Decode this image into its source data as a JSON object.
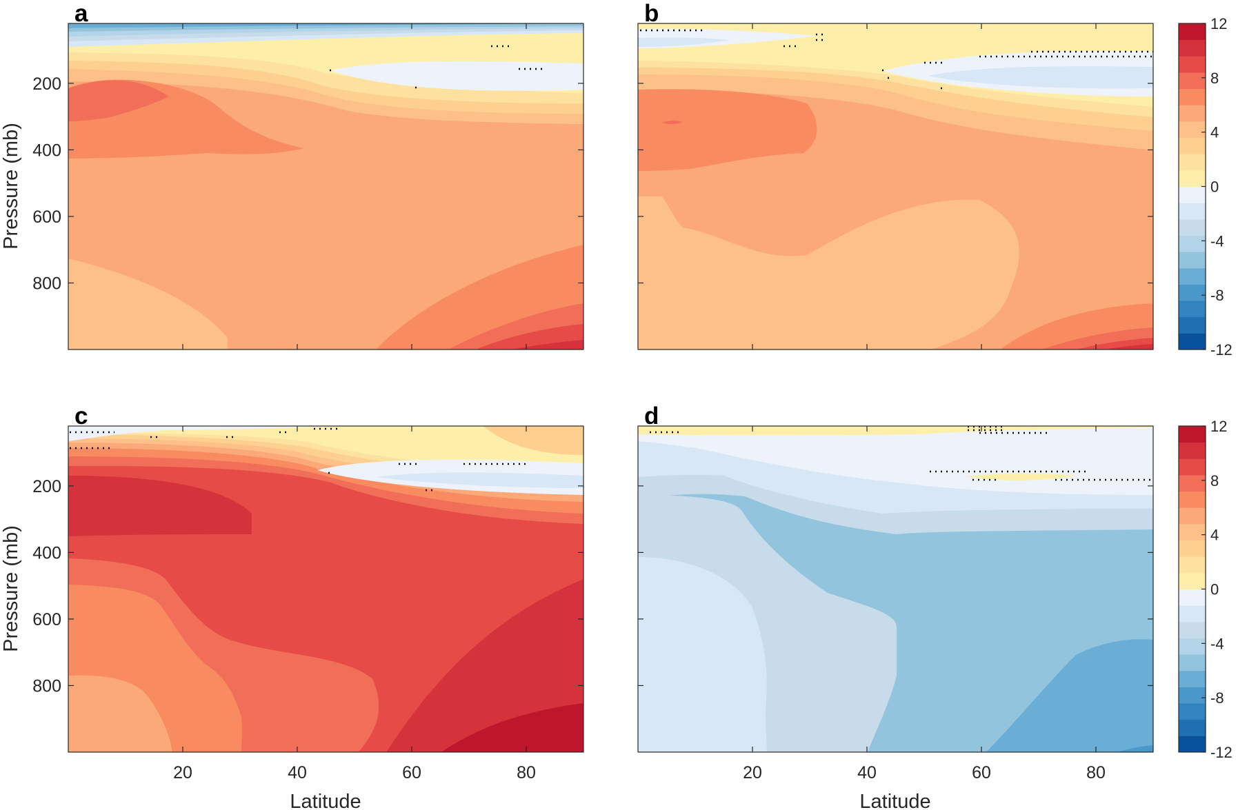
{
  "chart_data": {
    "type": "contour",
    "shared": {
      "xlabel": "Latitude",
      "ylabel": "Pressure (mb)",
      "xlim": [
        0,
        90
      ],
      "ylim": [
        1000,
        20
      ],
      "xticks": [
        20,
        40,
        60,
        80
      ],
      "yticks": [
        200,
        400,
        600,
        800
      ],
      "colorbar_ticks": [
        12,
        8,
        4,
        0,
        -4,
        -8,
        -12
      ],
      "colorbar_range": [
        -12,
        12
      ],
      "colorbar_levels": [
        {
          "from": -12,
          "to": -10.8,
          "color": "#08519c"
        },
        {
          "from": -10.8,
          "to": -9.6,
          "color": "#1f6fb2"
        },
        {
          "from": -9.6,
          "to": -8.4,
          "color": "#3383be"
        },
        {
          "from": -8.4,
          "to": -7.2,
          "color": "#4a97c9"
        },
        {
          "from": -7.2,
          "to": -6.0,
          "color": "#6aaed6"
        },
        {
          "from": -6.0,
          "to": -4.8,
          "color": "#92c4de"
        },
        {
          "from": -4.8,
          "to": -3.6,
          "color": "#b3d3e8"
        },
        {
          "from": -3.6,
          "to": -2.4,
          "color": "#c7dbeb"
        },
        {
          "from": -2.4,
          "to": -1.2,
          "color": "#d8e7f5"
        },
        {
          "from": -1.2,
          "to": 0,
          "color": "#eef3fb"
        },
        {
          "from": 0,
          "to": 1.2,
          "color": "#fdefaa"
        },
        {
          "from": 1.2,
          "to": 2.4,
          "color": "#fde29f"
        },
        {
          "from": 2.4,
          "to": 3.6,
          "color": "#fdd090"
        },
        {
          "from": 3.6,
          "to": 4.8,
          "color": "#fdc088"
        },
        {
          "from": 4.8,
          "to": 6.0,
          "color": "#fba978"
        },
        {
          "from": 6.0,
          "to": 7.2,
          "color": "#f88c60"
        },
        {
          "from": 7.2,
          "to": 8.4,
          "color": "#f16f58"
        },
        {
          "from": 8.4,
          "to": 9.6,
          "color": "#e74b47"
        },
        {
          "from": 9.6,
          "to": 10.8,
          "color": "#d5333b"
        },
        {
          "from": 10.8,
          "to": 12,
          "color": "#be162b"
        }
      ]
    },
    "panels": [
      {
        "label": "a",
        "xticklabels_shown": false,
        "yticklabels_shown": true,
        "xlabel_shown": false,
        "ylabel_shown": true
      },
      {
        "label": "b",
        "xticklabels_shown": false,
        "yticklabels_shown": false,
        "xlabel_shown": false,
        "ylabel_shown": false
      },
      {
        "label": "c",
        "xticklabels_shown": true,
        "yticklabels_shown": true,
        "xlabel_shown": true,
        "ylabel_shown": true
      },
      {
        "label": "d",
        "xticklabels_shown": true,
        "yticklabels_shown": false,
        "xlabel_shown": true,
        "ylabel_shown": false
      }
    ]
  }
}
